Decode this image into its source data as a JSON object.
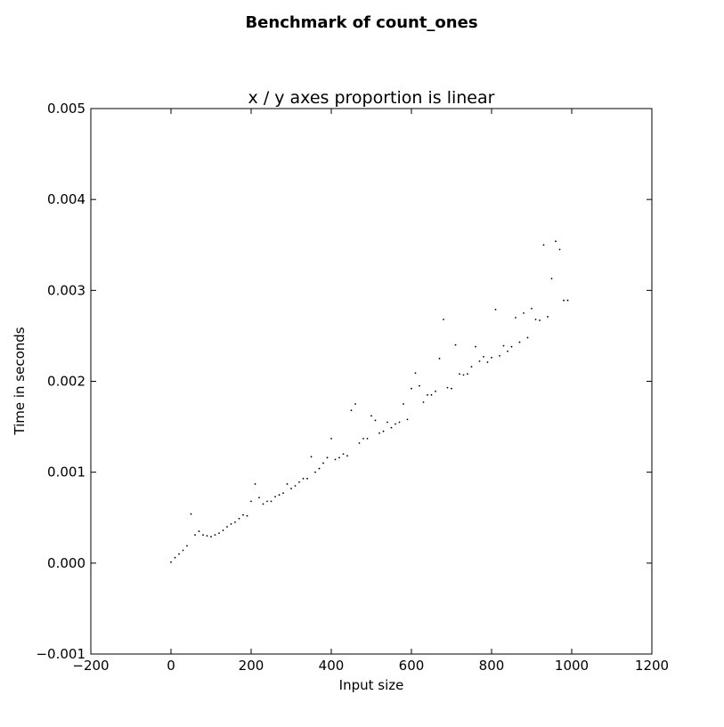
{
  "chart_data": {
    "type": "scatter",
    "suptitle": "Benchmark of count_ones",
    "title": "x / y axes proportion is linear",
    "xlabel": "Input size",
    "ylabel": "Time in seconds",
    "xlim": [
      -200,
      1200
    ],
    "ylim": [
      -0.001,
      0.005
    ],
    "xticks": [
      -200,
      0,
      200,
      400,
      600,
      800,
      1000,
      1200
    ],
    "xtick_labels": [
      "−200",
      "0",
      "200",
      "400",
      "600",
      "800",
      "1000",
      "1200"
    ],
    "yticks": [
      -0.001,
      0.0,
      0.001,
      0.002,
      0.003,
      0.004,
      0.005
    ],
    "ytick_labels": [
      "−0.001",
      "0.000",
      "0.001",
      "0.002",
      "0.003",
      "0.004",
      "0.005"
    ],
    "grid": false,
    "marker_color": "#000000",
    "points": [
      [
        0,
        1e-05
      ],
      [
        10,
        6e-05
      ],
      [
        20,
        0.0001
      ],
      [
        30,
        0.00014
      ],
      [
        40,
        0.00019
      ],
      [
        50,
        0.00054
      ],
      [
        60,
        0.00031
      ],
      [
        70,
        0.00035
      ],
      [
        80,
        0.00031
      ],
      [
        90,
        0.0003
      ],
      [
        100,
        0.00029
      ],
      [
        110,
        0.00031
      ],
      [
        120,
        0.00033
      ],
      [
        130,
        0.00036
      ],
      [
        140,
        0.0004
      ],
      [
        150,
        0.00043
      ],
      [
        160,
        0.00045
      ],
      [
        170,
        0.00049
      ],
      [
        180,
        0.00053
      ],
      [
        190,
        0.00052
      ],
      [
        200,
        0.00068
      ],
      [
        210,
        0.00087
      ],
      [
        220,
        0.00072
      ],
      [
        230,
        0.00065
      ],
      [
        240,
        0.00068
      ],
      [
        250,
        0.00068
      ],
      [
        260,
        0.00073
      ],
      [
        270,
        0.00075
      ],
      [
        280,
        0.00077
      ],
      [
        290,
        0.00087
      ],
      [
        300,
        0.00082
      ],
      [
        310,
        0.00085
      ],
      [
        320,
        0.00089
      ],
      [
        330,
        0.00093
      ],
      [
        340,
        0.00093
      ],
      [
        350,
        0.00117
      ],
      [
        360,
        0.001
      ],
      [
        370,
        0.00104
      ],
      [
        380,
        0.0011
      ],
      [
        390,
        0.00116
      ],
      [
        400,
        0.00137
      ],
      [
        410,
        0.00114
      ],
      [
        420,
        0.00116
      ],
      [
        430,
        0.0012
      ],
      [
        440,
        0.00118
      ],
      [
        450,
        0.00168
      ],
      [
        460,
        0.00175
      ],
      [
        470,
        0.00132
      ],
      [
        480,
        0.00137
      ],
      [
        490,
        0.00137
      ],
      [
        500,
        0.00162
      ],
      [
        510,
        0.00157
      ],
      [
        520,
        0.00143
      ],
      [
        530,
        0.00145
      ],
      [
        540,
        0.00155
      ],
      [
        550,
        0.00149
      ],
      [
        560,
        0.00153
      ],
      [
        570,
        0.00155
      ],
      [
        580,
        0.00175
      ],
      [
        590,
        0.00158
      ],
      [
        600,
        0.00192
      ],
      [
        610,
        0.00209
      ],
      [
        620,
        0.00195
      ],
      [
        630,
        0.00177
      ],
      [
        640,
        0.00185
      ],
      [
        650,
        0.00185
      ],
      [
        660,
        0.00189
      ],
      [
        670,
        0.00225
      ],
      [
        680,
        0.00268
      ],
      [
        690,
        0.00193
      ],
      [
        700,
        0.00192
      ],
      [
        710,
        0.0024
      ],
      [
        720,
        0.00208
      ],
      [
        730,
        0.00207
      ],
      [
        740,
        0.00208
      ],
      [
        750,
        0.00216
      ],
      [
        760,
        0.00238
      ],
      [
        770,
        0.00222
      ],
      [
        780,
        0.00227
      ],
      [
        790,
        0.00221
      ],
      [
        800,
        0.00226
      ],
      [
        810,
        0.00279
      ],
      [
        820,
        0.00228
      ],
      [
        830,
        0.00239
      ],
      [
        840,
        0.00233
      ],
      [
        850,
        0.00238
      ],
      [
        860,
        0.0027
      ],
      [
        870,
        0.00243
      ],
      [
        880,
        0.00275
      ],
      [
        890,
        0.00248
      ],
      [
        900,
        0.0028
      ],
      [
        910,
        0.00268
      ],
      [
        920,
        0.00267
      ],
      [
        930,
        0.0035
      ],
      [
        940,
        0.00271
      ],
      [
        950,
        0.00313
      ],
      [
        960,
        0.00354
      ],
      [
        970,
        0.00345
      ],
      [
        980,
        0.00289
      ],
      [
        990,
        0.00289
      ]
    ]
  }
}
